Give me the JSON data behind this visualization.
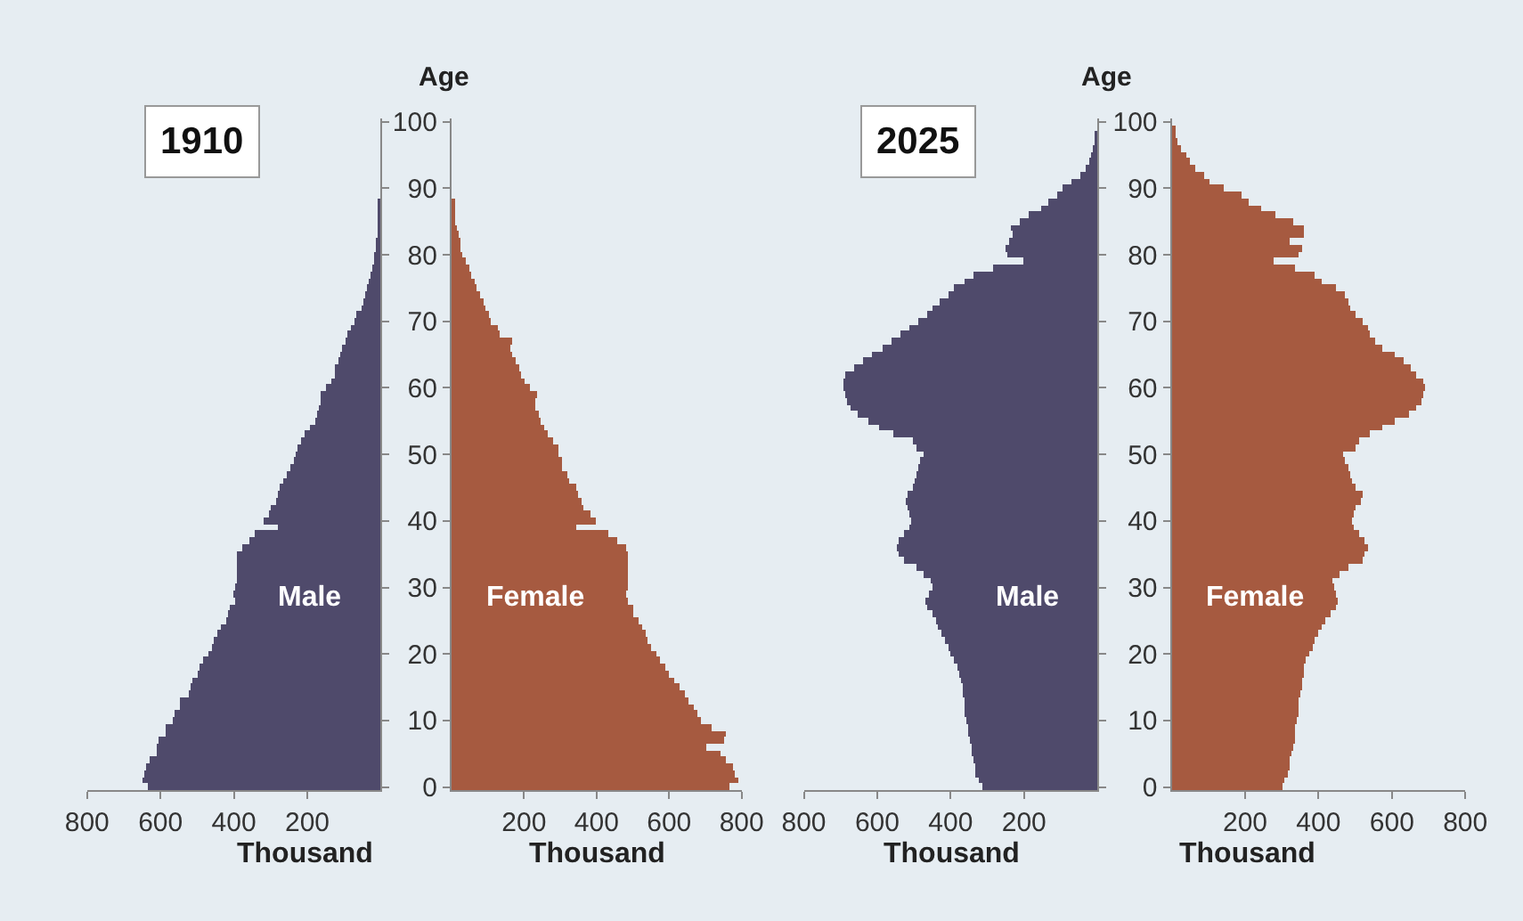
{
  "chart_data": [
    {
      "type": "bar",
      "orientation": "horizontal",
      "title": "1910",
      "xlabel": "Thousand",
      "tick_labels": "x",
      "categories": [
        "100",
        null,
        null,
        null,
        null,
        null,
        null,
        null,
        null,
        null,
        "90",
        null,
        null,
        null,
        null,
        null,
        null,
        null,
        null,
        null,
        "80",
        null,
        null,
        null,
        null,
        null,
        null,
        null,
        null,
        null,
        "70",
        null,
        null,
        null,
        null,
        null,
        null,
        null,
        null,
        null,
        "60",
        null,
        null,
        null,
        null,
        null,
        null,
        null,
        null,
        null,
        "50",
        null,
        null,
        null,
        null,
        null,
        null,
        null,
        null,
        null,
        "40",
        null,
        null,
        null,
        null,
        null,
        null,
        null,
        null,
        null,
        "30",
        null,
        null,
        null,
        null,
        null,
        null,
        null,
        null,
        null,
        "20",
        null,
        null,
        null,
        null,
        null,
        null,
        null,
        null,
        null,
        "10",
        null,
        null,
        null,
        null,
        null,
        null,
        null,
        null,
        null,
        "0"
      ],
      "series": [
        {
          "name": "Male",
          "color": "#4f4a6b",
          "values": [
            0,
            0,
            0,
            0,
            0,
            0,
            0,
            0,
            0,
            0,
            0,
            0,
            5,
            5,
            5,
            5,
            10,
            10,
            15,
            15,
            20,
            20,
            25,
            30,
            35,
            40,
            45,
            50,
            55,
            65,
            70,
            80,
            90,
            95,
            105,
            110,
            115,
            125,
            125,
            135,
            150,
            165,
            165,
            170,
            175,
            180,
            195,
            210,
            220,
            225,
            230,
            235,
            245,
            255,
            265,
            275,
            280,
            285,
            300,
            305,
            320,
            280,
            345,
            360,
            380,
            390,
            390,
            390,
            390,
            390,
            395,
            400,
            395,
            410,
            415,
            420,
            435,
            445,
            455,
            460,
            470,
            485,
            495,
            500,
            515,
            520,
            525,
            550,
            550,
            560,
            565,
            585,
            585,
            605,
            610,
            610,
            630,
            640,
            645,
            650,
            635
          ]
        }
      ],
      "xlim": [
        800,
        0
      ],
      "xticks": [
        800,
        600,
        400,
        200
      ]
    },
    {
      "type": "bar",
      "orientation": "horizontal",
      "ylabel": "Age",
      "xlabel": "Thousand",
      "categories": [
        "100",
        null,
        null,
        null,
        null,
        null,
        null,
        null,
        null,
        null,
        "90",
        null,
        null,
        null,
        null,
        null,
        null,
        null,
        null,
        null,
        "80",
        null,
        null,
        null,
        null,
        null,
        null,
        null,
        null,
        null,
        "70",
        null,
        null,
        null,
        null,
        null,
        null,
        null,
        null,
        null,
        "60",
        null,
        null,
        null,
        null,
        null,
        null,
        null,
        null,
        null,
        "50",
        null,
        null,
        null,
        null,
        null,
        null,
        null,
        null,
        null,
        "40",
        null,
        null,
        null,
        null,
        null,
        null,
        null,
        null,
        null,
        "30",
        null,
        null,
        null,
        null,
        null,
        null,
        null,
        null,
        null,
        "20",
        null,
        null,
        null,
        null,
        null,
        null,
        null,
        null,
        null,
        "10",
        null,
        null,
        null,
        null,
        null,
        null,
        null,
        null,
        null,
        "0"
      ],
      "series": [
        {
          "name": "Female",
          "color": "#a65a40",
          "values": [
            0,
            0,
            0,
            0,
            0,
            0,
            0,
            0,
            0,
            0,
            0,
            0,
            5,
            5,
            10,
            10,
            15,
            20,
            25,
            25,
            30,
            40,
            50,
            55,
            65,
            70,
            80,
            90,
            95,
            105,
            110,
            130,
            135,
            165,
            160,
            165,
            175,
            185,
            190,
            200,
            215,
            235,
            230,
            230,
            240,
            245,
            255,
            265,
            280,
            295,
            295,
            305,
            305,
            320,
            325,
            345,
            350,
            360,
            365,
            385,
            400,
            345,
            430,
            455,
            480,
            485,
            485,
            485,
            485,
            485,
            485,
            480,
            485,
            500,
            500,
            515,
            525,
            535,
            540,
            550,
            565,
            575,
            590,
            600,
            615,
            630,
            645,
            655,
            670,
            680,
            690,
            715,
            755,
            750,
            700,
            740,
            755,
            775,
            780,
            790,
            765
          ]
        }
      ],
      "xlim": [
        0,
        800
      ],
      "xticks": [
        200,
        400,
        600,
        800
      ]
    },
    {
      "type": "bar",
      "orientation": "horizontal",
      "title": "2025",
      "xlabel": "Thousand",
      "tick_labels": "x",
      "categories": [
        "100",
        null,
        null,
        null,
        null,
        null,
        null,
        null,
        null,
        null,
        "90",
        null,
        null,
        null,
        null,
        null,
        null,
        null,
        null,
        null,
        "80",
        null,
        null,
        null,
        null,
        null,
        null,
        null,
        null,
        null,
        "70",
        null,
        null,
        null,
        null,
        null,
        null,
        null,
        null,
        null,
        "60",
        null,
        null,
        null,
        null,
        null,
        null,
        null,
        null,
        null,
        "50",
        null,
        null,
        null,
        null,
        null,
        null,
        null,
        null,
        null,
        "40",
        null,
        null,
        null,
        null,
        null,
        null,
        null,
        null,
        null,
        "30",
        null,
        null,
        null,
        null,
        null,
        null,
        null,
        null,
        null,
        "20",
        null,
        null,
        null,
        null,
        null,
        null,
        null,
        null,
        null,
        "10",
        null,
        null,
        null,
        null,
        null,
        null,
        null,
        null,
        null,
        "0"
      ],
      "series": [
        {
          "name": "Male",
          "color": "#4f4a6b",
          "values": [
            0,
            0,
            5,
            10,
            15,
            20,
            25,
            35,
            50,
            70,
            95,
            110,
            135,
            155,
            190,
            215,
            235,
            230,
            240,
            250,
            245,
            205,
            285,
            340,
            365,
            390,
            405,
            430,
            450,
            465,
            490,
            515,
            540,
            560,
            585,
            615,
            640,
            665,
            690,
            695,
            695,
            690,
            685,
            675,
            655,
            625,
            595,
            555,
            505,
            495,
            475,
            485,
            490,
            495,
            500,
            505,
            520,
            525,
            520,
            515,
            510,
            515,
            530,
            545,
            550,
            545,
            530,
            495,
            475,
            455,
            450,
            460,
            470,
            465,
            450,
            440,
            435,
            425,
            415,
            405,
            400,
            390,
            385,
            380,
            375,
            370,
            370,
            365,
            365,
            365,
            360,
            355,
            355,
            350,
            345,
            345,
            340,
            335,
            335,
            325,
            315
          ]
        }
      ],
      "xlim": [
        800,
        0
      ],
      "xticks": [
        800,
        600,
        400,
        200
      ]
    },
    {
      "type": "bar",
      "orientation": "horizontal",
      "ylabel": "Age",
      "xlabel": "Thousand",
      "categories": [
        "100",
        null,
        null,
        null,
        null,
        null,
        null,
        null,
        null,
        null,
        "90",
        null,
        null,
        null,
        null,
        null,
        null,
        null,
        null,
        null,
        "80",
        null,
        null,
        null,
        null,
        null,
        null,
        null,
        null,
        null,
        "70",
        null,
        null,
        null,
        null,
        null,
        null,
        null,
        null,
        null,
        "60",
        null,
        null,
        null,
        null,
        null,
        null,
        null,
        null,
        null,
        "50",
        null,
        null,
        null,
        null,
        null,
        null,
        null,
        null,
        null,
        "40",
        null,
        null,
        null,
        null,
        null,
        null,
        null,
        null,
        null,
        "30",
        null,
        null,
        null,
        null,
        null,
        null,
        null,
        null,
        null,
        "20",
        null,
        null,
        null,
        null,
        null,
        null,
        null,
        null,
        null,
        "10",
        null,
        null,
        null,
        null,
        null,
        null,
        null,
        null,
        null,
        "0"
      ],
      "series": [
        {
          "name": "Female",
          "color": "#a65a40",
          "values": [
            0,
            5,
            10,
            15,
            25,
            40,
            50,
            65,
            85,
            100,
            140,
            190,
            210,
            245,
            280,
            330,
            360,
            360,
            320,
            355,
            345,
            275,
            335,
            390,
            410,
            445,
            470,
            480,
            485,
            500,
            520,
            535,
            540,
            555,
            575,
            605,
            630,
            650,
            665,
            685,
            690,
            685,
            680,
            665,
            645,
            605,
            575,
            540,
            510,
            500,
            465,
            470,
            480,
            485,
            490,
            500,
            520,
            515,
            500,
            495,
            490,
            495,
            510,
            525,
            535,
            525,
            520,
            480,
            455,
            435,
            440,
            445,
            450,
            445,
            430,
            415,
            410,
            400,
            390,
            385,
            375,
            365,
            360,
            360,
            355,
            355,
            350,
            345,
            345,
            345,
            340,
            335,
            335,
            335,
            330,
            325,
            320,
            320,
            315,
            305,
            300
          ]
        }
      ],
      "xlim": [
        0,
        800
      ],
      "xticks": [
        200,
        400,
        600,
        800
      ]
    }
  ]
}
